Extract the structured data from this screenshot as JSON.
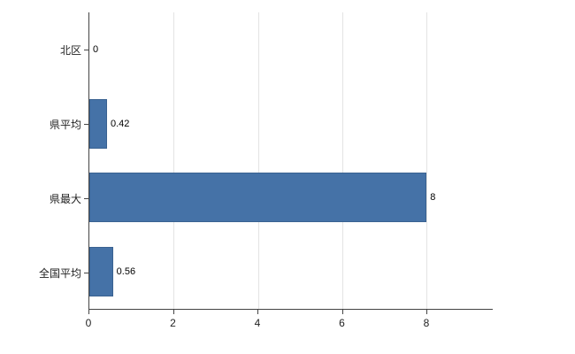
{
  "chart_data": {
    "type": "bar",
    "orientation": "horizontal",
    "title": "",
    "xlabel": "",
    "ylabel": "",
    "categories": [
      "北区",
      "県平均",
      "県最大",
      "全国平均"
    ],
    "values": [
      0,
      0.42,
      8,
      0.56
    ],
    "value_labels": [
      "0",
      "0.42",
      "8",
      "0.56"
    ],
    "x_ticks": [
      0,
      2,
      4,
      6,
      8
    ],
    "x_tick_labels": [
      "0",
      "2",
      "4",
      "6",
      "8"
    ],
    "xlim": [
      0,
      9.57
    ],
    "grid": true,
    "legend": false,
    "bar_color": "#4572a7",
    "gridline_color": "#e3e3e3",
    "axis_color": "#444444"
  }
}
